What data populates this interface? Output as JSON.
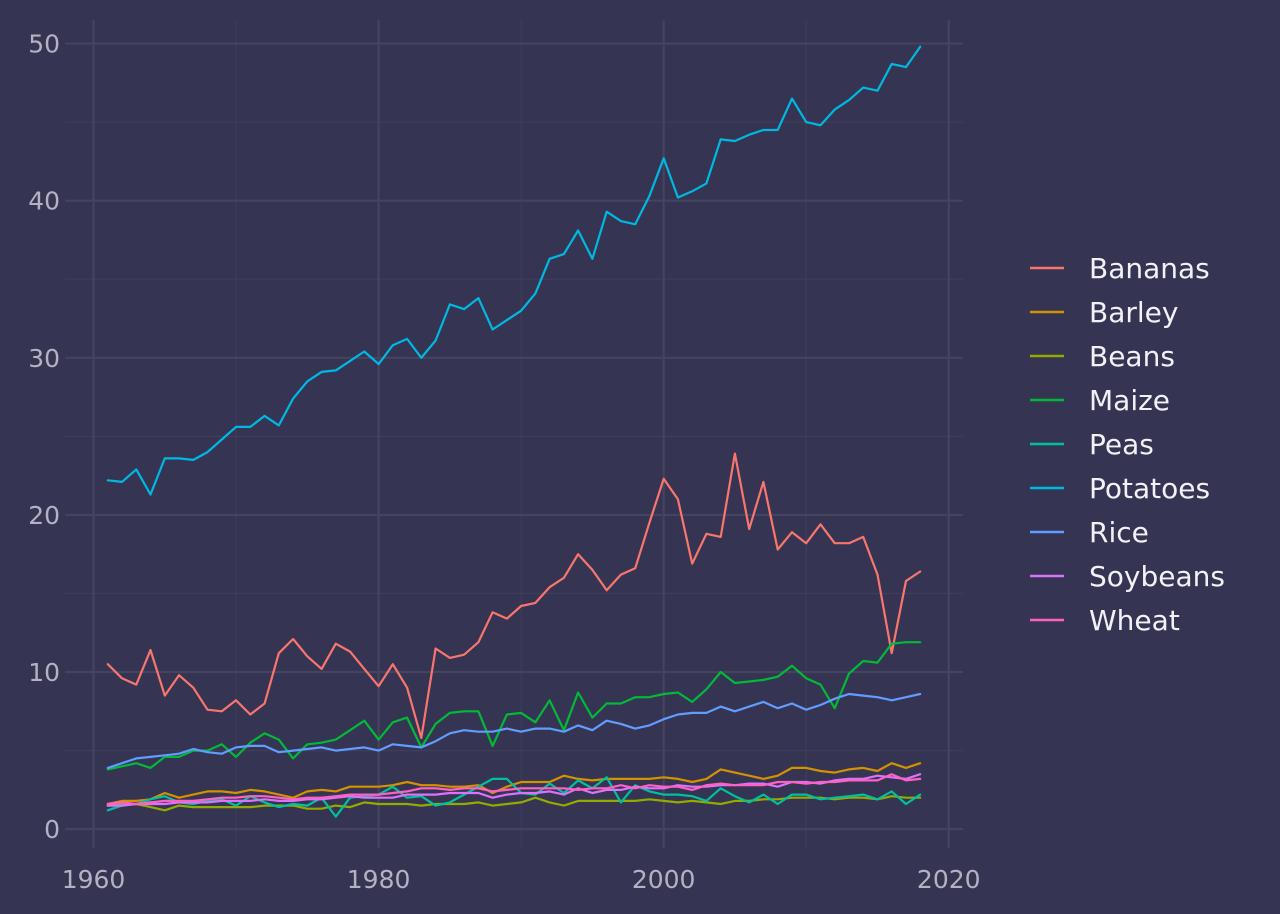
{
  "chart_data": {
    "type": "line",
    "title": "",
    "xlabel": "",
    "ylabel": "",
    "xlim": [
      1958,
      2021
    ],
    "ylim": [
      -1.2,
      51.5
    ],
    "x_ticks": [
      1960,
      1980,
      2000,
      2020
    ],
    "x_tick_labels": [
      "1960",
      "1980",
      "2000",
      "2020"
    ],
    "y_ticks": [
      0,
      10,
      20,
      30,
      40,
      50
    ],
    "y_tick_labels": [
      "0",
      "10",
      "20",
      "30",
      "40",
      "50"
    ],
    "grid": true,
    "legend_position": "right",
    "x": [
      1961,
      1962,
      1963,
      1964,
      1965,
      1966,
      1967,
      1968,
      1969,
      1970,
      1971,
      1972,
      1973,
      1974,
      1975,
      1976,
      1977,
      1978,
      1979,
      1980,
      1981,
      1982,
      1983,
      1984,
      1985,
      1986,
      1987,
      1988,
      1989,
      1990,
      1991,
      1992,
      1993,
      1994,
      1995,
      1996,
      1997,
      1998,
      1999,
      2000,
      2001,
      2002,
      2003,
      2004,
      2005,
      2006,
      2007,
      2008,
      2009,
      2010,
      2011,
      2012,
      2013,
      2014,
      2015,
      2016,
      2017,
      2018
    ],
    "series": [
      {
        "name": "Bananas",
        "color": "#f8766d",
        "values": [
          10.5,
          9.6,
          9.2,
          11.4,
          8.5,
          9.8,
          9.0,
          7.6,
          7.5,
          8.2,
          7.3,
          8.0,
          11.2,
          12.1,
          11.0,
          10.2,
          11.8,
          11.3,
          10.2,
          9.1,
          10.5,
          9.0,
          5.8,
          11.5,
          10.9,
          11.1,
          11.9,
          13.8,
          13.4,
          14.2,
          14.4,
          15.4,
          16.0,
          17.5,
          16.5,
          15.2,
          16.2,
          16.6,
          19.5,
          22.3,
          21.0,
          16.9,
          18.8,
          18.6,
          23.9,
          19.1,
          22.1,
          17.8,
          18.9,
          18.2,
          19.4,
          18.2,
          18.2,
          18.6,
          16.2,
          11.2,
          15.8,
          16.4
        ]
      },
      {
        "name": "Barley",
        "color": "#d39200",
        "values": [
          1.6,
          1.8,
          1.8,
          1.9,
          2.3,
          2.0,
          2.2,
          2.4,
          2.4,
          2.3,
          2.5,
          2.4,
          2.2,
          2.0,
          2.4,
          2.5,
          2.4,
          2.7,
          2.7,
          2.7,
          2.8,
          3.0,
          2.8,
          2.8,
          2.7,
          2.7,
          2.8,
          2.3,
          2.7,
          3.0,
          3.0,
          3.0,
          3.4,
          3.2,
          3.1,
          3.2,
          3.2,
          3.2,
          3.2,
          3.3,
          3.2,
          3.0,
          3.2,
          3.8,
          3.6,
          3.4,
          3.2,
          3.4,
          3.9,
          3.9,
          3.7,
          3.6,
          3.8,
          3.9,
          3.7,
          4.2,
          3.9,
          4.2
        ]
      },
      {
        "name": "Beans",
        "color": "#93aa00",
        "values": [
          1.5,
          1.6,
          1.6,
          1.4,
          1.2,
          1.5,
          1.4,
          1.4,
          1.4,
          1.4,
          1.4,
          1.5,
          1.5,
          1.5,
          1.3,
          1.3,
          1.5,
          1.4,
          1.7,
          1.6,
          1.6,
          1.6,
          1.5,
          1.6,
          1.6,
          1.6,
          1.7,
          1.5,
          1.6,
          1.7,
          2.0,
          1.7,
          1.5,
          1.8,
          1.8,
          1.8,
          1.8,
          1.8,
          1.9,
          1.8,
          1.7,
          1.8,
          1.7,
          1.6,
          1.8,
          1.8,
          1.9,
          1.9,
          2.0,
          2.0,
          2.0,
          1.9,
          2.0,
          2.0,
          1.9,
          2.1,
          2.0,
          2.0
        ]
      },
      {
        "name": "Maize",
        "color": "#00ba38",
        "values": [
          3.8,
          4.0,
          4.2,
          3.9,
          4.6,
          4.6,
          5.0,
          5.0,
          5.4,
          4.6,
          5.5,
          6.1,
          5.7,
          4.5,
          5.4,
          5.5,
          5.7,
          6.3,
          6.9,
          5.7,
          6.8,
          7.1,
          5.2,
          6.7,
          7.4,
          7.5,
          7.5,
          5.3,
          7.3,
          7.4,
          6.8,
          8.2,
          6.3,
          8.7,
          7.1,
          8.0,
          8.0,
          8.4,
          8.4,
          8.6,
          8.7,
          8.1,
          8.9,
          10.0,
          9.3,
          9.4,
          9.5,
          9.7,
          10.4,
          9.6,
          9.2,
          7.7,
          9.9,
          10.7,
          10.6,
          11.8,
          11.9,
          11.9
        ]
      },
      {
        "name": "Peas",
        "color": "#00c19f",
        "values": [
          1.2,
          1.5,
          1.6,
          1.9,
          2.1,
          1.7,
          1.6,
          1.8,
          1.9,
          1.5,
          2.1,
          1.7,
          1.4,
          1.6,
          1.5,
          2.0,
          0.8,
          2.0,
          2.1,
          2.2,
          2.7,
          2.0,
          2.1,
          1.5,
          1.7,
          2.2,
          2.7,
          3.2,
          3.2,
          2.3,
          2.2,
          2.9,
          2.3,
          3.1,
          2.6,
          3.3,
          1.7,
          2.8,
          2.4,
          2.2,
          2.2,
          2.1,
          1.8,
          2.6,
          2.1,
          1.7,
          2.2,
          1.6,
          2.2,
          2.2,
          1.9,
          2.0,
          2.1,
          2.2,
          1.9,
          2.4,
          1.6,
          2.2
        ]
      },
      {
        "name": "Potatoes",
        "color": "#00b9e3",
        "values": [
          22.2,
          22.1,
          22.9,
          21.3,
          23.6,
          23.6,
          23.5,
          24.0,
          24.8,
          25.6,
          25.6,
          26.3,
          25.7,
          27.4,
          28.5,
          29.1,
          29.2,
          29.8,
          30.4,
          29.6,
          30.8,
          31.2,
          30.0,
          31.1,
          33.4,
          33.1,
          33.8,
          31.8,
          32.4,
          33.0,
          34.1,
          36.3,
          36.6,
          38.1,
          36.3,
          39.3,
          38.7,
          38.5,
          40.3,
          42.7,
          40.2,
          40.6,
          41.1,
          43.9,
          43.8,
          44.2,
          44.5,
          44.5,
          46.5,
          45.0,
          44.8,
          45.8,
          46.4,
          47.2,
          47.0,
          48.7,
          48.5,
          49.8
        ]
      },
      {
        "name": "Rice",
        "color": "#619cff",
        "values": [
          3.9,
          4.2,
          4.5,
          4.6,
          4.7,
          4.8,
          5.1,
          4.9,
          4.8,
          5.2,
          5.3,
          5.3,
          4.9,
          5.0,
          5.1,
          5.2,
          5.0,
          5.1,
          5.2,
          5.0,
          5.4,
          5.3,
          5.2,
          5.6,
          6.1,
          6.3,
          6.2,
          6.2,
          6.4,
          6.2,
          6.4,
          6.4,
          6.2,
          6.6,
          6.3,
          6.9,
          6.7,
          6.4,
          6.6,
          7.0,
          7.3,
          7.4,
          7.4,
          7.8,
          7.5,
          7.8,
          8.1,
          7.7,
          8.0,
          7.6,
          7.9,
          8.3,
          8.6,
          8.5,
          8.4,
          8.2,
          8.4,
          8.6
        ]
      },
      {
        "name": "Soybeans",
        "color": "#db72fb",
        "values": [
          1.5,
          1.5,
          1.6,
          1.6,
          1.6,
          1.7,
          1.7,
          1.7,
          1.8,
          1.8,
          1.8,
          1.9,
          1.8,
          1.8,
          1.9,
          1.9,
          2.0,
          2.1,
          2.0,
          2.0,
          2.0,
          2.2,
          2.2,
          2.2,
          2.3,
          2.3,
          2.3,
          2.0,
          2.2,
          2.3,
          2.3,
          2.4,
          2.2,
          2.6,
          2.3,
          2.5,
          2.5,
          2.7,
          2.6,
          2.6,
          2.8,
          2.7,
          2.7,
          2.8,
          2.8,
          2.9,
          2.9,
          2.7,
          3.0,
          3.0,
          2.9,
          3.1,
          3.2,
          3.2,
          3.4,
          3.3,
          3.2,
          3.5
        ]
      },
      {
        "name": "Wheat",
        "color": "#ff61c3",
        "values": [
          1.6,
          1.7,
          1.6,
          1.7,
          1.8,
          1.8,
          1.8,
          1.9,
          2.0,
          2.0,
          2.1,
          2.1,
          2.0,
          1.9,
          2.0,
          2.0,
          2.1,
          2.2,
          2.2,
          2.2,
          2.3,
          2.4,
          2.6,
          2.6,
          2.5,
          2.6,
          2.6,
          2.4,
          2.5,
          2.6,
          2.6,
          2.6,
          2.6,
          2.5,
          2.6,
          2.6,
          2.8,
          2.6,
          2.8,
          2.7,
          2.7,
          2.5,
          2.8,
          2.9,
          2.8,
          2.8,
          2.8,
          3.0,
          3.0,
          2.9,
          3.0,
          3.0,
          3.1,
          3.1,
          3.1,
          3.5,
          3.1,
          3.2
        ]
      }
    ]
  }
}
